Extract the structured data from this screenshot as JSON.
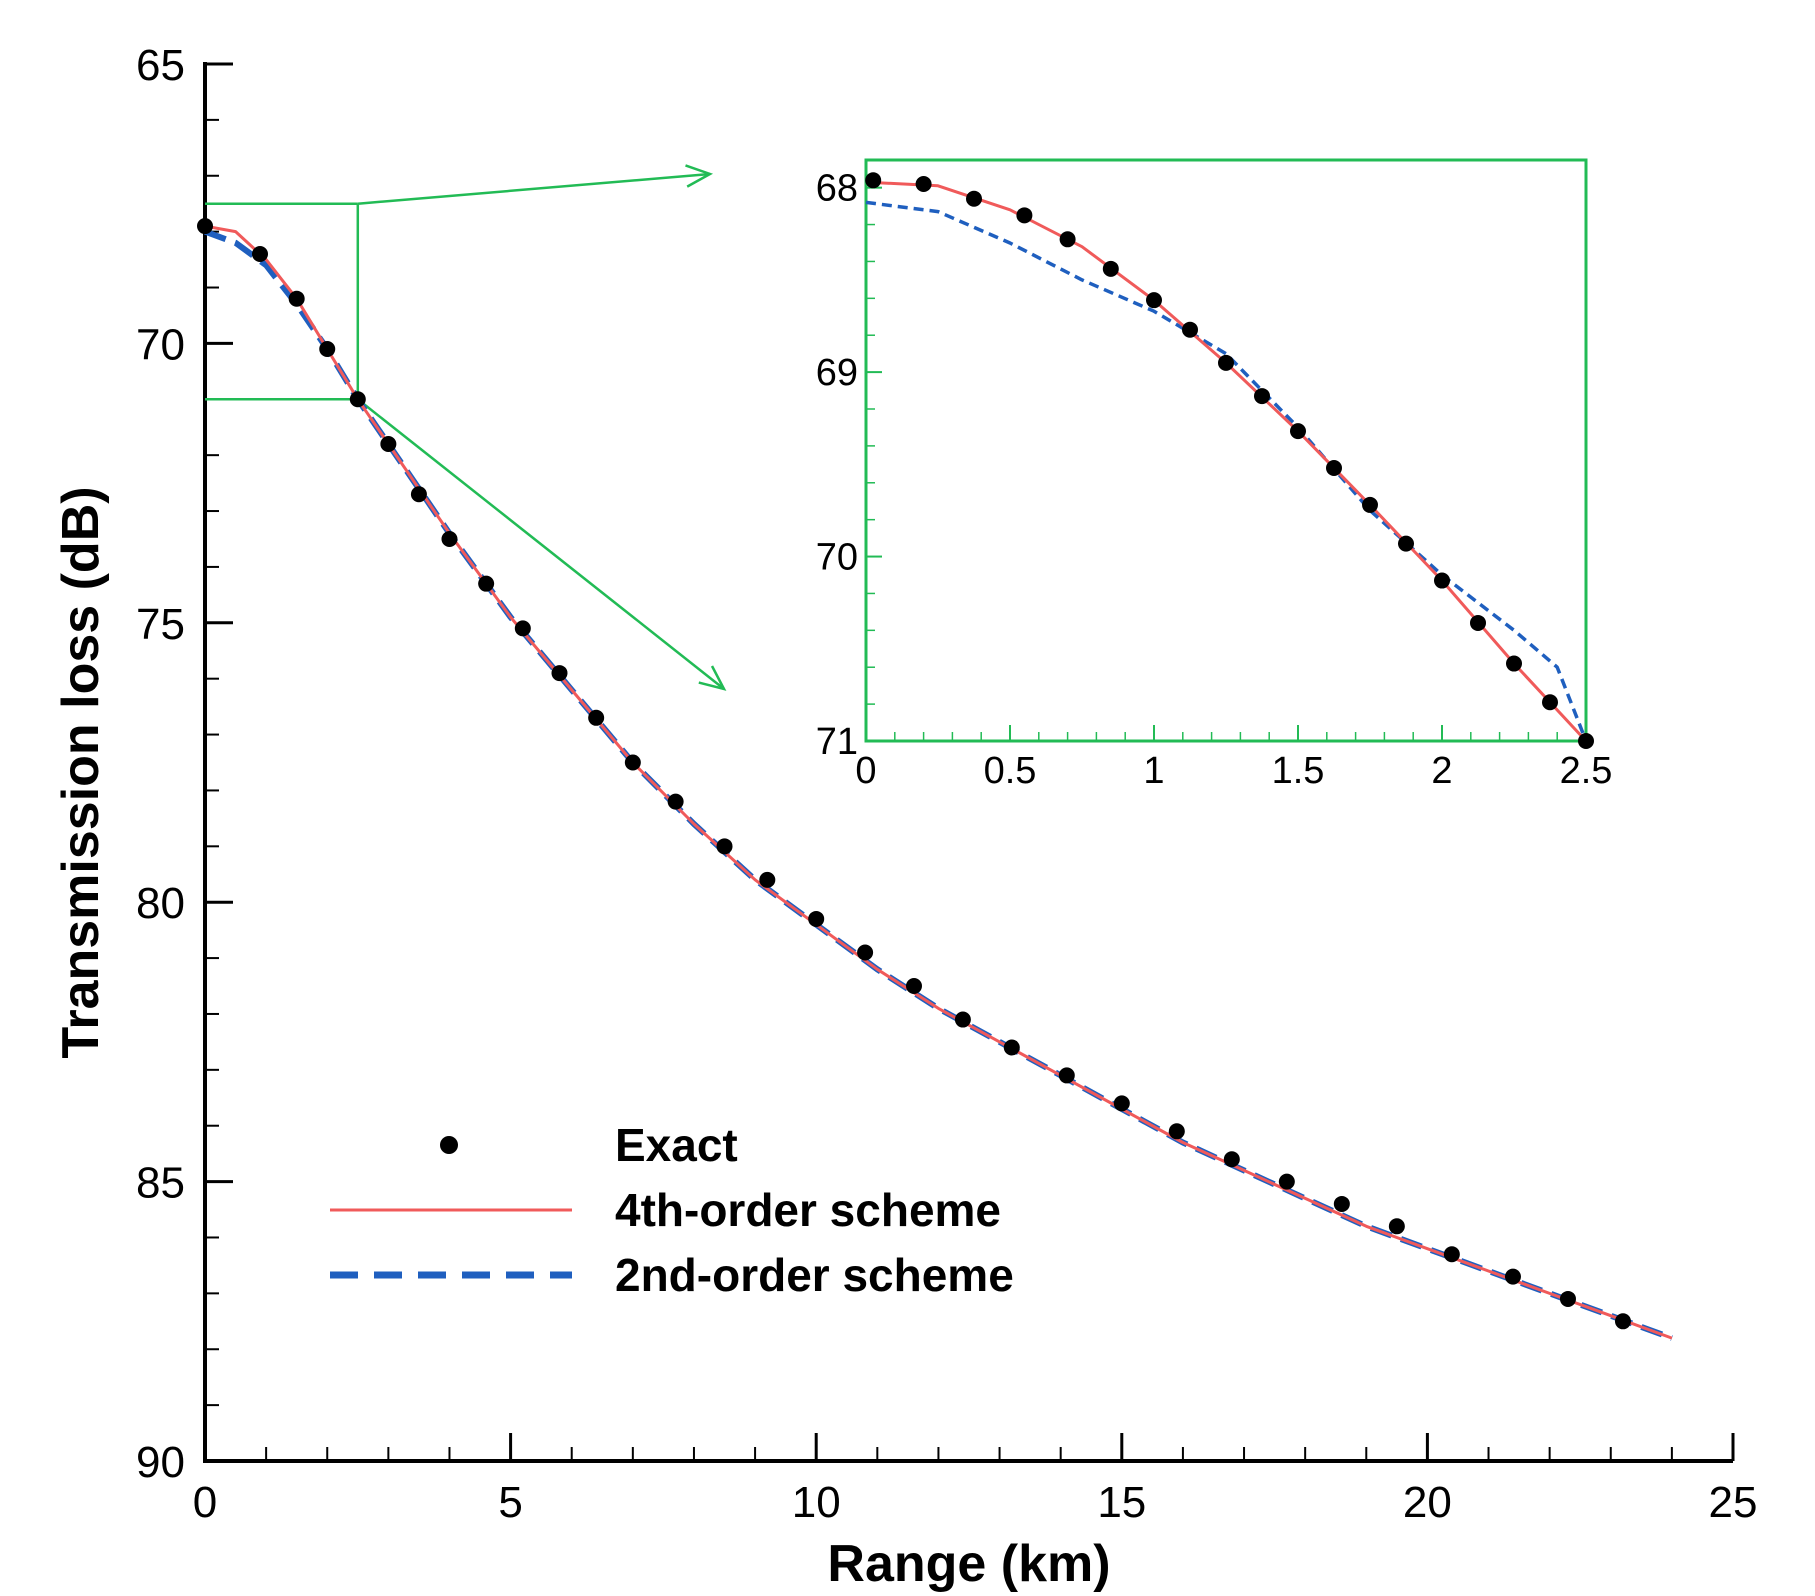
{
  "chart_data": {
    "type": "line",
    "title": "",
    "xlabel": "Range (km)",
    "ylabel": "Transmission loss (dB)",
    "xlim": [
      0,
      25
    ],
    "ylim": [
      65,
      90
    ],
    "y_inverted": true,
    "xticks": [
      0,
      5,
      10,
      15,
      20,
      25
    ],
    "yticks": [
      65,
      70,
      75,
      80,
      85,
      90
    ],
    "xtick_labels": [
      "0",
      "5",
      "10",
      "15",
      "20",
      "25"
    ],
    "ytick_labels": [
      "65",
      "70",
      "75",
      "80",
      "85",
      "90"
    ],
    "grid": false,
    "legend_position": "bottom-left",
    "series": [
      {
        "name": "Exact",
        "style": "markers",
        "color": "#000000",
        "x": [
          0,
          0.9,
          1.5,
          2.0,
          2.5,
          3.0,
          3.5,
          4.0,
          4.6,
          5.2,
          5.8,
          6.4,
          7.0,
          7.7,
          8.5,
          9.2,
          10.0,
          10.8,
          11.6,
          12.4,
          13.2,
          14.1,
          15.0,
          15.9,
          16.8,
          17.7,
          18.6,
          19.5,
          20.4,
          21.4,
          22.3,
          23.2
        ],
        "y": [
          67.9,
          68.4,
          69.2,
          70.1,
          71.0,
          71.8,
          72.7,
          73.5,
          74.3,
          75.1,
          75.9,
          76.7,
          77.5,
          78.2,
          79.0,
          79.6,
          80.3,
          80.9,
          81.5,
          82.1,
          82.6,
          83.1,
          83.6,
          84.1,
          84.6,
          85.0,
          85.4,
          85.8,
          86.3,
          86.7,
          87.1,
          87.5
        ]
      },
      {
        "name": "4th-order scheme",
        "style": "solid",
        "color": "#f05a5a",
        "x": [
          0,
          0.5,
          1.0,
          1.5,
          2.0,
          2.5,
          3.0,
          3.5,
          4.0,
          5.0,
          6.0,
          7.0,
          8.0,
          9.0,
          10.0,
          11.0,
          12.0,
          13.0,
          14.0,
          15.0,
          16.0,
          17.0,
          18.0,
          19.0,
          20.0,
          21.0,
          22.0,
          23.0,
          24.0
        ],
        "y": [
          67.9,
          68.0,
          68.5,
          69.2,
          70.1,
          71.0,
          71.8,
          72.6,
          73.4,
          74.9,
          76.2,
          77.5,
          78.6,
          79.6,
          80.4,
          81.2,
          81.9,
          82.5,
          83.1,
          83.7,
          84.3,
          84.8,
          85.3,
          85.8,
          86.2,
          86.6,
          87.0,
          87.4,
          87.8
        ]
      },
      {
        "name": "2nd-order scheme",
        "style": "dashed",
        "color": "#1f5fbf",
        "x": [
          0,
          0.5,
          1.0,
          1.5,
          2.0,
          2.5,
          3.0,
          3.5,
          4.0,
          5.0,
          6.0,
          7.0,
          8.0,
          9.0,
          10.0,
          11.0,
          12.0,
          13.0,
          14.0,
          15.0,
          16.0,
          17.0,
          18.0,
          19.0,
          20.0,
          21.0,
          22.0,
          23.0,
          24.0
        ],
        "y": [
          68.0,
          68.2,
          68.6,
          69.3,
          70.1,
          71.0,
          71.8,
          72.6,
          73.4,
          74.9,
          76.2,
          77.5,
          78.6,
          79.6,
          80.4,
          81.2,
          81.9,
          82.5,
          83.1,
          83.7,
          84.3,
          84.8,
          85.3,
          85.8,
          86.2,
          86.6,
          87.0,
          87.4,
          87.8
        ]
      }
    ],
    "zoom_region": {
      "xlim": [
        0,
        2.5
      ],
      "ylim": [
        67.5,
        71.0
      ],
      "color": "#22bb55"
    },
    "inset": {
      "type": "line",
      "xlim": [
        0,
        2.5
      ],
      "ylim": [
        67.85,
        71.0
      ],
      "y_inverted": true,
      "xticks": [
        0,
        0.5,
        1,
        1.5,
        2,
        2.5
      ],
      "yticks": [
        68,
        69,
        70,
        71
      ],
      "xtick_labels": [
        "0",
        "0.5",
        "1",
        "1.5",
        "2",
        "2.5"
      ],
      "ytick_labels": [
        "68",
        "69",
        "70",
        "71"
      ],
      "frame_color": "#22bb55",
      "series": [
        {
          "name": "Exact",
          "style": "markers",
          "color": "#000000",
          "x": [
            0.025,
            0.2,
            0.375,
            0.55,
            0.7,
            0.85,
            1.0,
            1.125,
            1.25,
            1.375,
            1.5,
            1.625,
            1.75,
            1.875,
            2.0,
            2.125,
            2.25,
            2.375,
            2.5
          ],
          "y": [
            67.96,
            67.98,
            68.06,
            68.15,
            68.28,
            68.44,
            68.61,
            68.77,
            68.95,
            69.13,
            69.32,
            69.52,
            69.72,
            69.93,
            70.13,
            70.36,
            70.58,
            70.79,
            71.0
          ]
        },
        {
          "name": "4th-order scheme",
          "style": "solid",
          "color": "#f05a5a",
          "x": [
            0,
            0.25,
            0.5,
            0.75,
            1.0,
            1.25,
            1.5,
            1.75,
            2.0,
            2.25,
            2.5
          ],
          "y": [
            67.97,
            67.99,
            68.12,
            68.32,
            68.61,
            68.95,
            69.32,
            69.72,
            70.13,
            70.58,
            71.0
          ]
        },
        {
          "name": "2nd-order scheme",
          "style": "dashed",
          "color": "#1f5fbf",
          "x": [
            0,
            0.25,
            0.5,
            0.75,
            1.0,
            1.25,
            1.5,
            1.75,
            2.0,
            2.25,
            2.4,
            2.5
          ],
          "y": [
            68.08,
            68.13,
            68.3,
            68.5,
            68.67,
            68.9,
            69.3,
            69.75,
            70.1,
            70.4,
            70.6,
            71.0
          ]
        }
      ]
    }
  }
}
